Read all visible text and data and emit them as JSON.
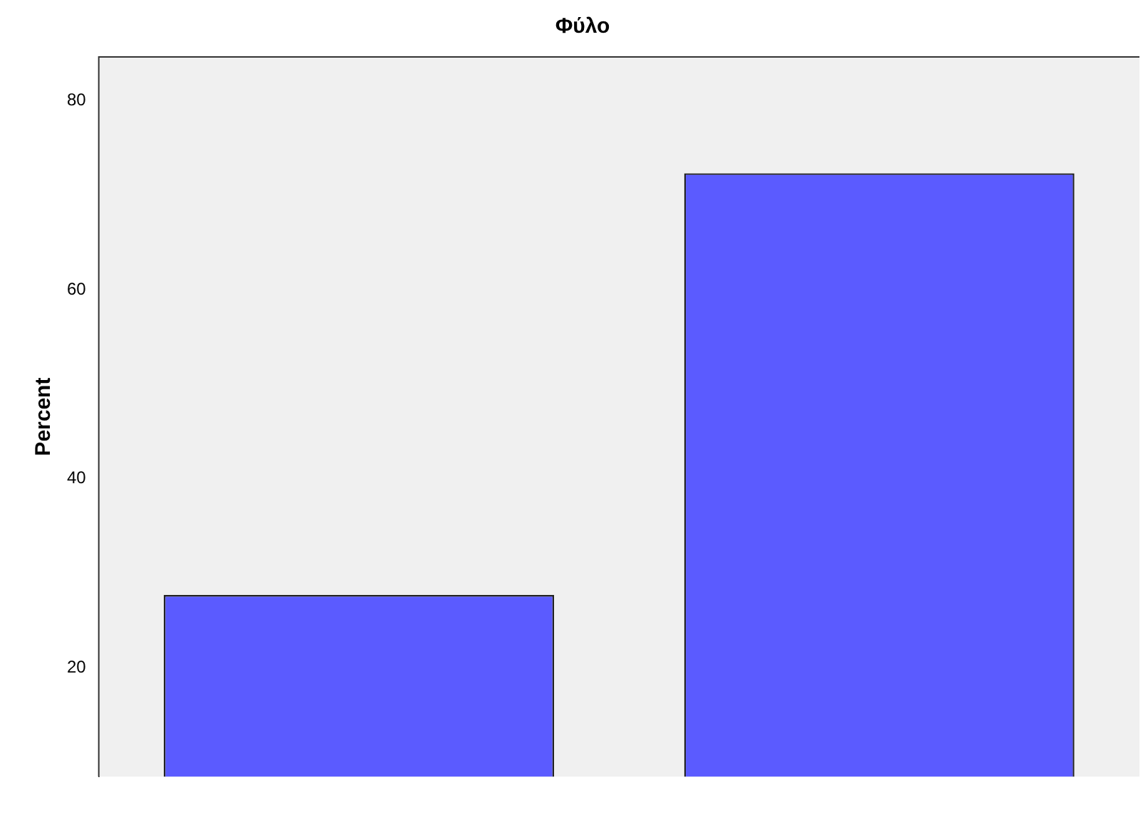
{
  "chart_data": {
    "type": "bar",
    "title": "Φύλο",
    "ylabel": "Percent",
    "categories": [
      null,
      null
    ],
    "values": [
      27.7,
      72.3
    ],
    "color": "#5b5bff",
    "ylim": [
      8.5,
      84.6
    ],
    "yticks": [
      20,
      40,
      60,
      80
    ],
    "grid": false,
    "legend": false
  }
}
